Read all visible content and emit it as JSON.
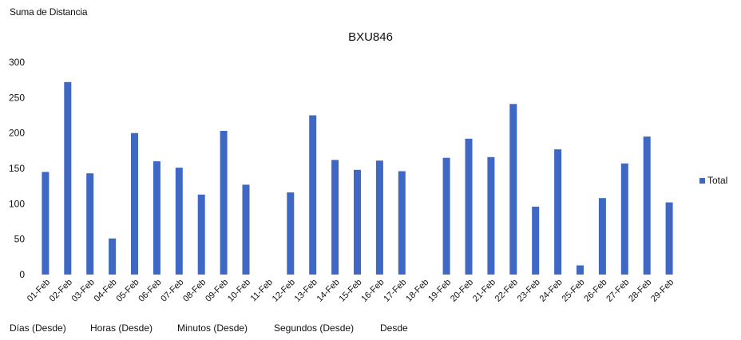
{
  "header": {
    "value_field": "Suma de Distancia"
  },
  "chart_data": {
    "type": "bar",
    "title": "BXU846",
    "categories": [
      "01-Feb",
      "02-Feb",
      "03-Feb",
      "04-Feb",
      "05-Feb",
      "06-Feb",
      "07-Feb",
      "08-Feb",
      "09-Feb",
      "10-Feb",
      "11-Feb",
      "12-Feb",
      "13-Feb",
      "14-Feb",
      "15-Feb",
      "16-Feb",
      "17-Feb",
      "18-Feb",
      "19-Feb",
      "20-Feb",
      "21-Feb",
      "22-Feb",
      "23-Feb",
      "24-Feb",
      "25-Feb",
      "26-Feb",
      "27-Feb",
      "28-Feb",
      "29-Feb"
    ],
    "series": [
      {
        "name": "Total",
        "values": [
          145,
          272,
          143,
          51,
          200,
          160,
          151,
          113,
          203,
          127,
          0,
          116,
          225,
          162,
          148,
          161,
          146,
          0,
          165,
          192,
          166,
          241,
          96,
          177,
          13,
          108,
          157,
          195,
          102
        ]
      }
    ],
    "ylim": [
      0,
      300
    ],
    "yticks": [
      0,
      50,
      100,
      150,
      200,
      250,
      300
    ],
    "grid": false,
    "legend_position": "right",
    "bar_color": "#3f67c4"
  },
  "row_fields": [
    "Días (Desde)",
    "Horas (Desde)",
    "Minutos (Desde)",
    "Segundos (Desde)",
    "Desde"
  ]
}
